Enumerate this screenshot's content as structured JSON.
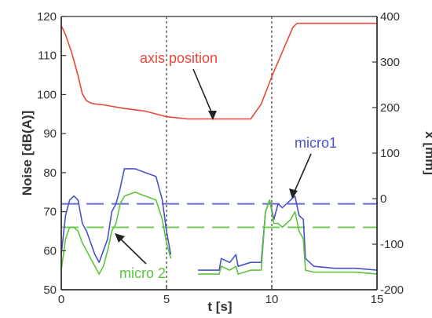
{
  "chart_data": {
    "type": "line",
    "xlabel": "t [s]",
    "ylabel_left": "Noise [dB(A)]",
    "ylabel_right": "x [mm]",
    "xlim": [
      0,
      15
    ],
    "ylim_left": [
      50,
      120
    ],
    "ylim_right": [
      -200,
      400
    ],
    "xticks": [
      "0",
      "5",
      "10",
      "15"
    ],
    "yticks_left": [
      "50",
      "60",
      "70",
      "80",
      "90",
      "100",
      "110",
      "120"
    ],
    "yticks_right": [
      "-200",
      "-100",
      "0",
      "100",
      "200",
      "300",
      "400"
    ],
    "grid": "dotted vertical lines at x = 5 and x = 10",
    "colors": {
      "axis_position": "#e8473a",
      "micro1": "#4a52c9",
      "micro2": "#5cc43c",
      "axes": "#333333"
    },
    "series": [
      {
        "name": "axis position",
        "axis": "right",
        "x": [
          0,
          0.2,
          0.5,
          0.8,
          1.0,
          1.2,
          1.4,
          1.6,
          2.0,
          3.0,
          4.0,
          5.0,
          6.0,
          7.0,
          8.0,
          9.0,
          9.5,
          10.0,
          10.5,
          11.0,
          11.2,
          15.0
        ],
        "y": [
          380,
          360,
          320,
          270,
          230,
          215,
          210,
          208,
          206,
          198,
          192,
          180,
          175,
          175,
          175,
          175,
          208,
          268,
          322,
          376,
          385,
          385
        ]
      },
      {
        "name": "micro1",
        "axis": "left",
        "x": [
          0,
          0.2,
          0.4,
          0.6,
          0.8,
          1.0,
          1.2,
          1.4,
          1.6,
          1.8,
          2.0,
          2.2,
          2.4,
          2.6,
          2.8,
          3.0,
          3.5,
          4.0,
          4.5,
          4.8,
          5.0,
          5.2,
          null,
          6.5,
          7.5,
          7.6,
          8.0,
          8.3,
          8.4,
          9.0,
          9.5,
          9.7,
          9.9,
          10.1,
          10.3,
          10.5,
          10.7,
          10.9,
          11.1,
          11.3,
          11.5,
          11.6,
          12.0,
          13.0,
          14.0,
          15.0
        ],
        "y": [
          59,
          69,
          73,
          74,
          73,
          67,
          65,
          62,
          59,
          57,
          60,
          63,
          70,
          72,
          76,
          81,
          81,
          80,
          79,
          73,
          65,
          59,
          null,
          55,
          55,
          58,
          57,
          59,
          56,
          57,
          57,
          70,
          73,
          68,
          72,
          71,
          72,
          73,
          74,
          69,
          68,
          58,
          56,
          55.5,
          55.5,
          55
        ]
      },
      {
        "name": "micro 2",
        "axis": "left",
        "x": [
          0,
          0.2,
          0.4,
          0.6,
          0.8,
          1.0,
          1.2,
          1.4,
          1.6,
          1.8,
          2.0,
          2.2,
          2.4,
          2.6,
          2.8,
          3.0,
          3.5,
          4.0,
          4.5,
          4.8,
          5.0,
          5.2,
          null,
          6.5,
          7.5,
          7.6,
          8.0,
          8.3,
          8.4,
          9.0,
          9.5,
          9.7,
          9.9,
          10.1,
          10.3,
          10.5,
          10.7,
          10.9,
          11.1,
          11.3,
          11.5,
          11.6,
          12.0,
          13.0,
          14.0,
          15.0
        ],
        "y": [
          55,
          63,
          66,
          66,
          65,
          62,
          60,
          58,
          56,
          54,
          56,
          60,
          65,
          67,
          72,
          74,
          75,
          74,
          73,
          68,
          62,
          58,
          null,
          54,
          54,
          56,
          55,
          56,
          54,
          55,
          55,
          70,
          73,
          67,
          67,
          66,
          67,
          68,
          70,
          65,
          63,
          55,
          54.5,
          54.5,
          54.5,
          54
        ]
      }
    ],
    "reference_lines": [
      {
        "series": "micro1",
        "axis": "left",
        "y": 72,
        "style": "dashed"
      },
      {
        "series": "micro 2",
        "axis": "left",
        "y": 66,
        "style": "dashed"
      }
    ],
    "annotations": [
      {
        "text": "axis position",
        "series": "axis position"
      },
      {
        "text": "micro1",
        "series": "micro1"
      },
      {
        "text": "micro 2",
        "series": "micro 2"
      }
    ]
  }
}
